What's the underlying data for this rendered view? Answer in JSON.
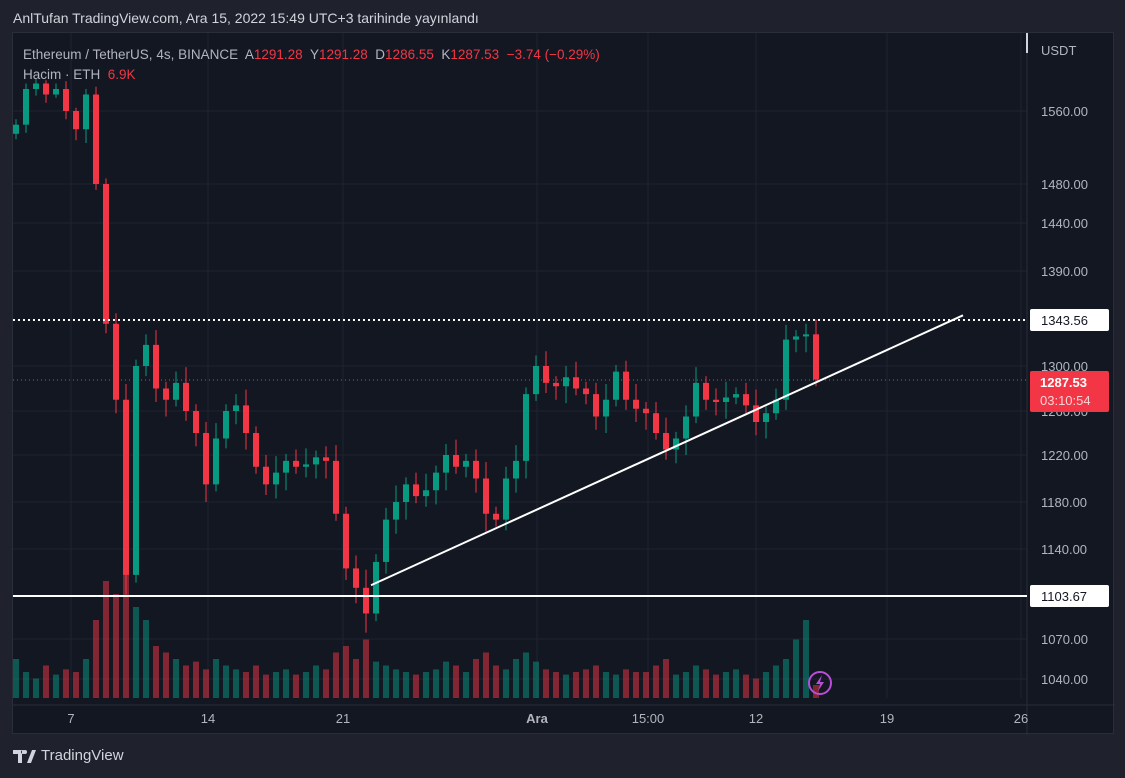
{
  "title": "AnlTufan TradingView.com, Ara 15, 2022 15:49 UTC+3 tarihinde yayınlandı",
  "legend": {
    "symbol": "Ethereum / TetherUS, 4s, BINANCE",
    "o_label": "A",
    "o": "1291.28",
    "h_label": "Y",
    "h": "1291.28",
    "l_label": "D",
    "l": "1286.55",
    "c_label": "K",
    "c": "1287.53",
    "change": "−3.74 (−0.29%)",
    "volume_label": "Hacim · ETH",
    "volume": "6.9K"
  },
  "footer": {
    "brand": "TradingView"
  },
  "colors": {
    "up": "#089981",
    "down": "#f23645",
    "bg": "#131722",
    "line": "#ffffff"
  },
  "chart_data": {
    "type": "candlestick",
    "currency": "USDT",
    "y_ticks": [
      "1560.00",
      "1480.00",
      "1440.00",
      "1390.00",
      "1300.00",
      "1260.00",
      "1220.00",
      "1180.00",
      "1140.00",
      "1070.00",
      "1040.00"
    ],
    "x_ticks": [
      "7",
      "14",
      "21",
      "Ara",
      "15:00",
      "12",
      "19",
      "26"
    ],
    "closes": [
      1545,
      1600,
      1610,
      1590,
      1600,
      1560,
      1540,
      1590,
      1480,
      1340,
      1270,
      1120,
      1300,
      1320,
      1280,
      1270,
      1285,
      1260,
      1240,
      1195,
      1235,
      1260,
      1265,
      1240,
      1210,
      1195,
      1205,
      1215,
      1210,
      1212,
      1218,
      1215,
      1170,
      1125,
      1110,
      1090,
      1130,
      1165,
      1180,
      1195,
      1185,
      1190,
      1205,
      1220,
      1210,
      1215,
      1200,
      1170,
      1165,
      1200,
      1215,
      1275,
      1300,
      1285,
      1282,
      1290,
      1280,
      1275,
      1255,
      1270,
      1295,
      1270,
      1262,
      1258,
      1240,
      1225,
      1235,
      1255,
      1285,
      1270,
      1268,
      1272,
      1275,
      1265,
      1250,
      1258,
      1270,
      1325,
      1328,
      1330,
      1288
    ],
    "volumes": [
      30,
      20,
      15,
      25,
      18,
      22,
      20,
      30,
      60,
      90,
      80,
      100,
      70,
      60,
      40,
      35,
      30,
      25,
      28,
      22,
      30,
      25,
      22,
      20,
      25,
      18,
      20,
      22,
      18,
      20,
      25,
      22,
      35,
      40,
      30,
      45,
      28,
      25,
      22,
      20,
      18,
      20,
      22,
      28,
      25,
      20,
      30,
      35,
      25,
      22,
      30,
      35,
      28,
      22,
      20,
      18,
      20,
      22,
      25,
      20,
      18,
      22,
      20,
      20,
      25,
      30,
      18,
      20,
      25,
      22,
      18,
      20,
      22,
      18,
      15,
      20,
      25,
      30,
      45,
      60,
      10
    ],
    "levels": {
      "resistance": "1343.56",
      "support": "1103.67",
      "last_price": "1287.53",
      "countdown": "03:10:54"
    },
    "trendline": {
      "start": {
        "candle": 35.5,
        "price": 1112
      },
      "end": {
        "candle": 94.7,
        "price": 1348
      }
    }
  }
}
